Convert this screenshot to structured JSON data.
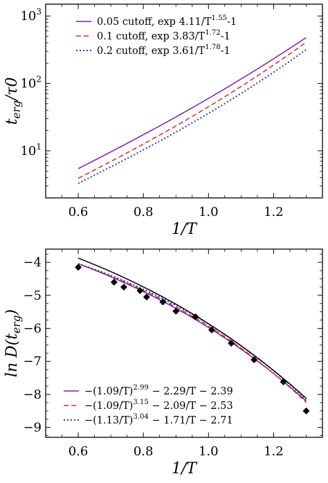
{
  "chart_data": [
    {
      "type": "line",
      "ylabel": "t_erg/τ0",
      "xlabel": "1/T",
      "yscale": "log",
      "xlim": [
        0.5,
        1.35
      ],
      "ylim": [
        2.0,
        1500
      ],
      "xticks": [
        0.6,
        0.8,
        1.0,
        1.2
      ],
      "xtick_labels": [
        "0.6",
        "0.8",
        "1.0",
        "1.2"
      ],
      "yticks": [
        10,
        100,
        1000
      ],
      "ytick_labels": [
        "10^1",
        "10^2",
        "10^3"
      ],
      "grid": false,
      "legend_position": "top-left",
      "series": [
        {
          "name": "0.05 cutoff, exp 4.11/T^1.55-1",
          "color": "#7b1fa2",
          "style": "solid",
          "formula": {
            "a": 4.11,
            "p": 1.55
          },
          "x_range": [
            0.6,
            1.3
          ]
        },
        {
          "name": "0.1 cutoff, exp 3.83/T^1.72-1",
          "color": "#d32f2f",
          "style": "dashed",
          "formula": {
            "a": 3.83,
            "p": 1.72
          },
          "x_range": [
            0.6,
            1.3
          ]
        },
        {
          "name": "0.2 cutoff, exp 3.61/T^1.78-1",
          "color": "#1f3fbf",
          "style": "dotted",
          "formula": {
            "a": 3.61,
            "p": 1.78
          },
          "x_range": [
            0.6,
            1.3
          ]
        }
      ]
    },
    {
      "type": "line",
      "ylabel": "ln D(t_erg)",
      "xlabel": "1/T",
      "xlim": [
        0.5,
        1.35
      ],
      "ylim": [
        -9.3,
        -3.6
      ],
      "xticks": [
        0.6,
        0.8,
        1.0,
        1.2
      ],
      "xtick_labels": [
        "0.6",
        "0.8",
        "1.0",
        "1.2"
      ],
      "yticks": [
        -9,
        -8,
        -7,
        -6,
        -5,
        -4
      ],
      "ytick_labels": [
        "−9",
        "−8",
        "−7",
        "−6",
        "−5",
        "−4"
      ],
      "grid": false,
      "legend_position": "bottom-left",
      "series": [
        {
          "name": "−(1.09/T)^2.99 − 2.29/T − 2.39",
          "color": "#7b1fa2",
          "style": "solid",
          "formula": {
            "a": 1.09,
            "p": 2.99,
            "b": 2.29,
            "c": 2.39
          },
          "x_range": [
            0.6,
            1.3
          ]
        },
        {
          "name": "−(1.09/T)^3.15 − 2.09/T − 2.53",
          "color": "#d32f2f",
          "style": "dashed",
          "formula": {
            "a": 1.09,
            "p": 3.15,
            "b": 2.09,
            "c": 2.53
          },
          "x_range": [
            0.6,
            1.3
          ]
        },
        {
          "name": "−(1.13/T)^3.04 − 1.71/T − 2.71",
          "color": "#1f3fbf",
          "style": "dotted",
          "formula": {
            "a": 1.13,
            "p": 3.04,
            "b": 1.71,
            "c": 2.71
          },
          "x_range": [
            0.6,
            1.3
          ]
        },
        {
          "color": "#000000",
          "style": "solid",
          "formula": {
            "a": 1.08,
            "p": 3.0,
            "b": 2.5,
            "c": 2.1
          },
          "x_range": [
            0.6,
            1.3
          ]
        }
      ],
      "points": {
        "x": [
          0.6,
          0.71,
          0.74,
          0.79,
          0.81,
          0.86,
          0.9,
          0.96,
          1.01,
          1.07,
          1.14,
          1.23,
          1.3
        ],
        "y": [
          -4.15,
          -4.6,
          -4.75,
          -4.86,
          -5.05,
          -5.2,
          -5.48,
          -5.65,
          -6.05,
          -6.45,
          -6.95,
          -7.62,
          -8.5
        ],
        "color": "#000000",
        "marker": "diamond"
      }
    }
  ]
}
